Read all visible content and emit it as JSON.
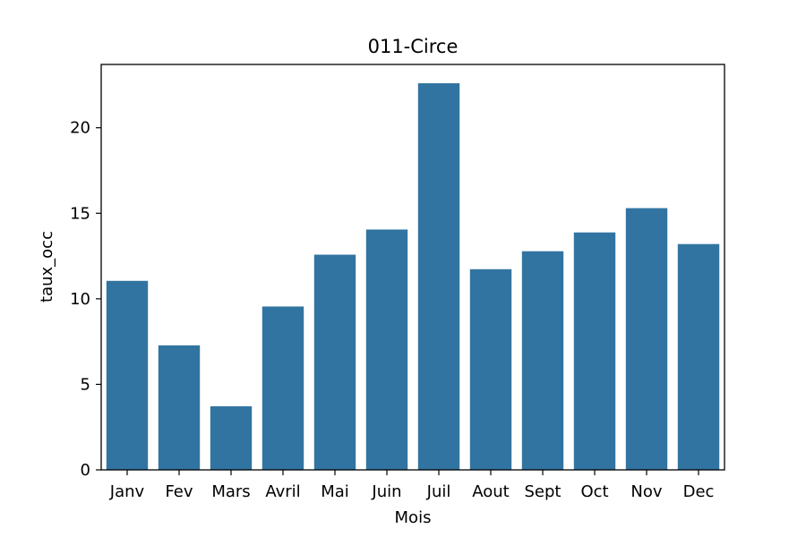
{
  "chart_data": {
    "type": "bar",
    "title": "011-Circe",
    "xlabel": "Mois",
    "ylabel": "taux_occ",
    "categories": [
      "Janv",
      "Fev",
      "Mars",
      "Avril",
      "Mai",
      "Juin",
      "Juil",
      "Aout",
      "Sept",
      "Oct",
      "Nov",
      "Dec"
    ],
    "values": [
      11.05,
      7.28,
      3.72,
      9.55,
      12.58,
      14.05,
      22.6,
      11.73,
      12.78,
      13.88,
      15.3,
      13.2
    ],
    "ylim": [
      0,
      23.7
    ],
    "yticks": [
      0,
      5,
      10,
      15,
      20
    ],
    "grid": false,
    "bar_color": "#3274a1"
  }
}
